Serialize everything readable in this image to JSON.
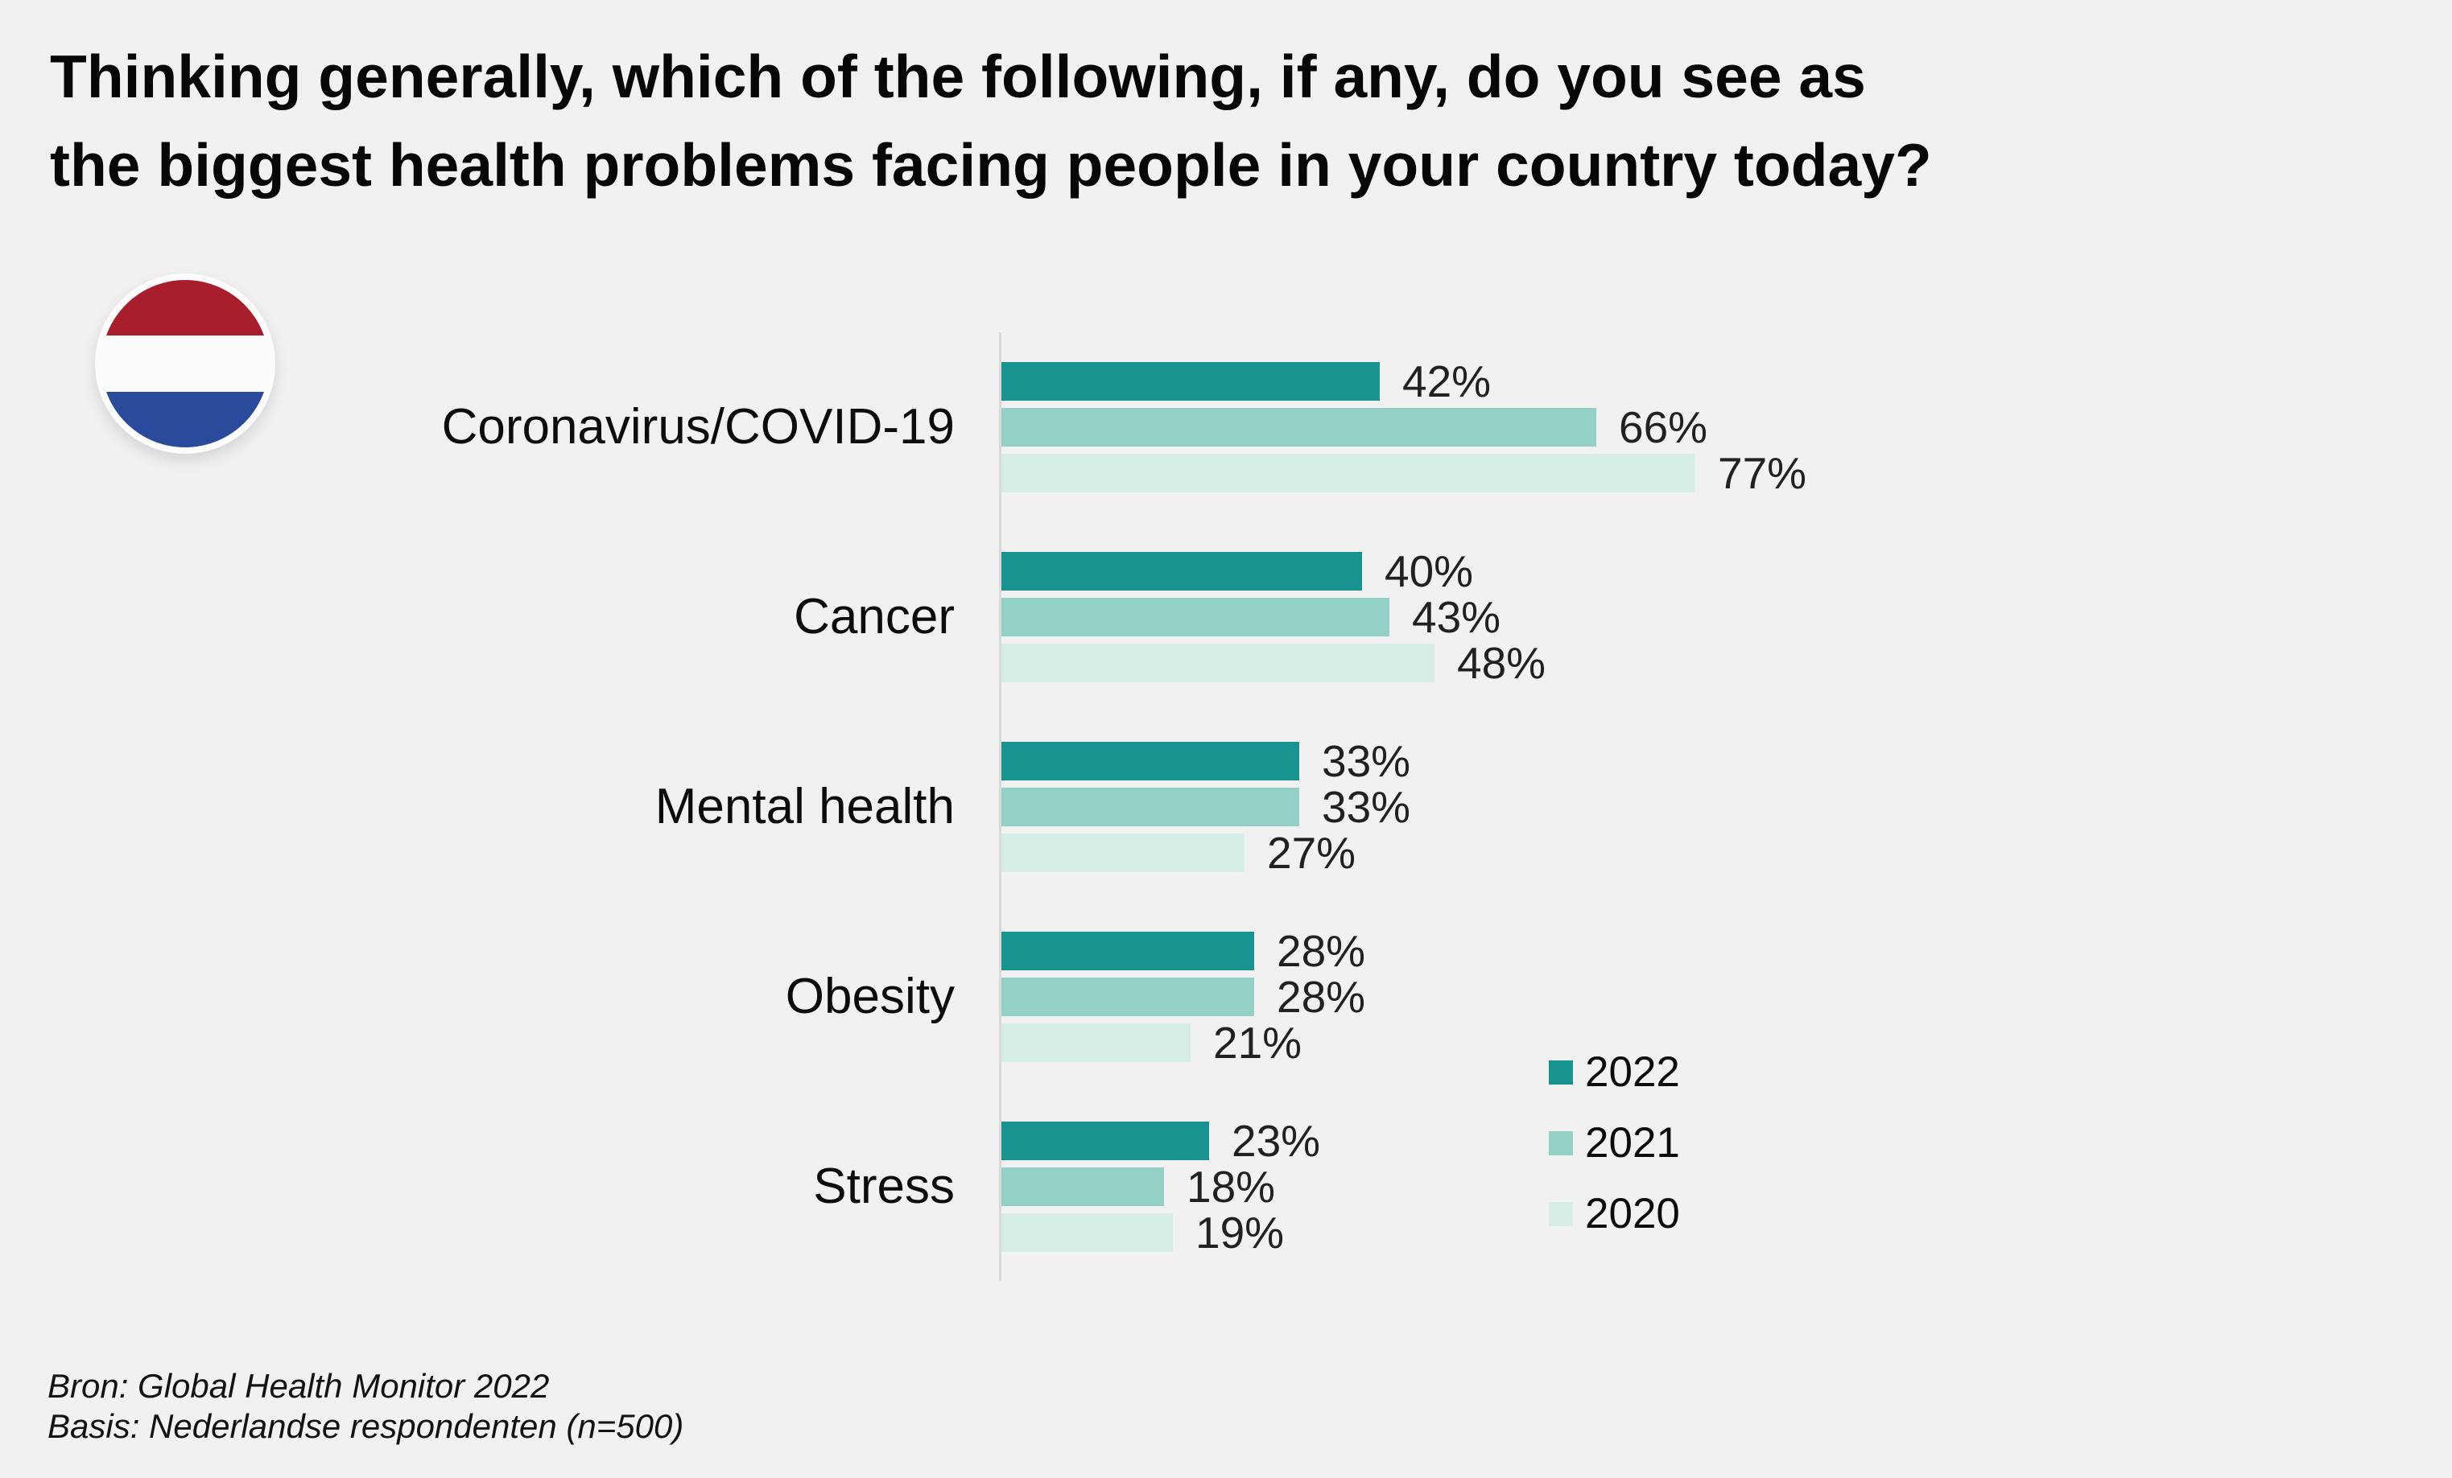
{
  "title": {
    "line1": "Thinking generally, which of the following, if any, do you see as",
    "line2": "the biggest health problems facing people in your country today?"
  },
  "flag": {
    "name": "netherlands-flag",
    "stripe_colors": [
      "#a91e2c",
      "#fcfcfc",
      "#2a4b9b"
    ]
  },
  "chart_data": {
    "type": "bar",
    "orientation": "horizontal",
    "title": "",
    "xlabel": "",
    "ylabel": "",
    "xlim": [
      0,
      100
    ],
    "grid": false,
    "legend_position": "right-bottom",
    "value_suffix": "%",
    "categories": [
      "Coronavirus/COVID-19",
      "Cancer",
      "Mental health",
      "Obesity",
      "Stress"
    ],
    "series": [
      {
        "name": "2022",
        "color": "#18938f",
        "values": [
          42,
          40,
          33,
          28,
          23
        ]
      },
      {
        "name": "2021",
        "color": "#93d0c6",
        "values": [
          66,
          43,
          33,
          28,
          18
        ]
      },
      {
        "name": "2020",
        "color": "#d6ece6",
        "values": [
          77,
          48,
          27,
          21,
          19
        ]
      }
    ]
  },
  "source": {
    "line1": "Bron: Global Health Monitor 2022",
    "line2": "Basis: Nederlandse respondenten (n=500)"
  },
  "colors": {
    "background": "#f1f1f1",
    "axis": "#d9d9d9",
    "text": "#0c0c0c"
  }
}
